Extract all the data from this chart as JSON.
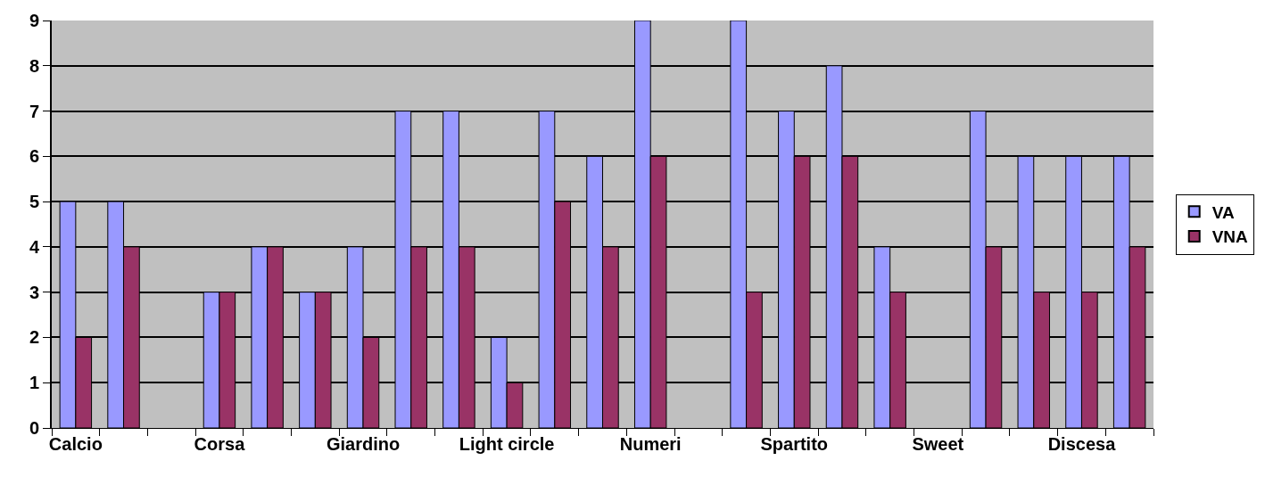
{
  "chart_data": {
    "type": "bar",
    "categories": [
      "Calcio",
      null,
      null,
      "Corsa",
      null,
      null,
      "Giardino",
      null,
      null,
      "Light circle",
      null,
      null,
      "Numeri",
      null,
      null,
      "Spartito",
      null,
      null,
      "Sweet",
      null,
      null,
      "Discesa",
      null
    ],
    "series": [
      {
        "name": "VA",
        "color": "#9999ff",
        "values": [
          5,
          5,
          null,
          3,
          4,
          3,
          4,
          7,
          7,
          2,
          7,
          6,
          9,
          null,
          9,
          7,
          8,
          4,
          null,
          7,
          6,
          6,
          6
        ]
      },
      {
        "name": "VNA",
        "color": "#993366",
        "values": [
          2,
          4,
          null,
          3,
          4,
          3,
          2,
          4,
          4,
          1,
          5,
          4,
          6,
          null,
          3,
          6,
          6,
          3,
          null,
          4,
          3,
          3,
          4
        ]
      }
    ],
    "ylim": [
      0,
      9
    ],
    "yticks": [
      0,
      1,
      2,
      3,
      4,
      5,
      6,
      7,
      8,
      9
    ],
    "grid": "y",
    "legend": "right"
  }
}
